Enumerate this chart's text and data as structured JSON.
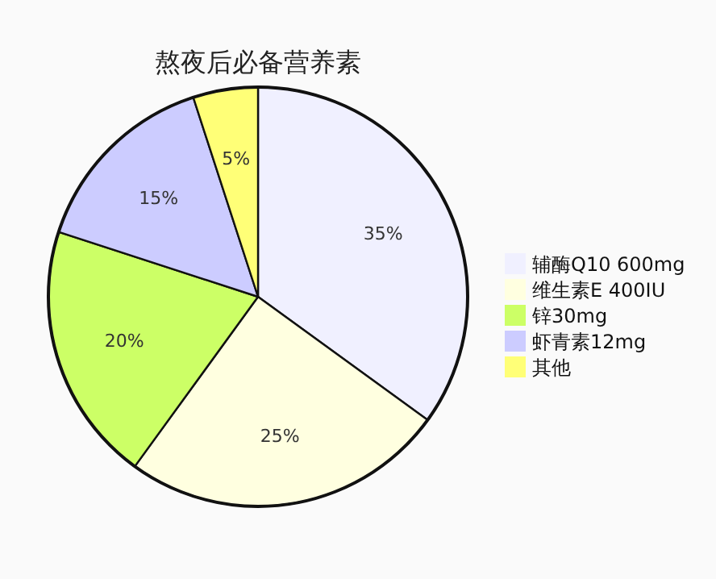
{
  "chart_data": {
    "type": "pie",
    "title": "熬夜后必备营养素",
    "categories": [
      "辅酶Q10 600mg",
      "维生素E 400IU",
      "锌30mg",
      "虾青素12mg",
      "其他"
    ],
    "values": [
      35,
      25,
      20,
      15,
      5
    ],
    "value_labels": [
      "35%",
      "25%",
      "20%",
      "15%",
      "5%"
    ],
    "colors": [
      "#f0f0ff",
      "#ffffe0",
      "#ccff66",
      "#ccccff",
      "#ffff77"
    ],
    "legend": "right"
  }
}
